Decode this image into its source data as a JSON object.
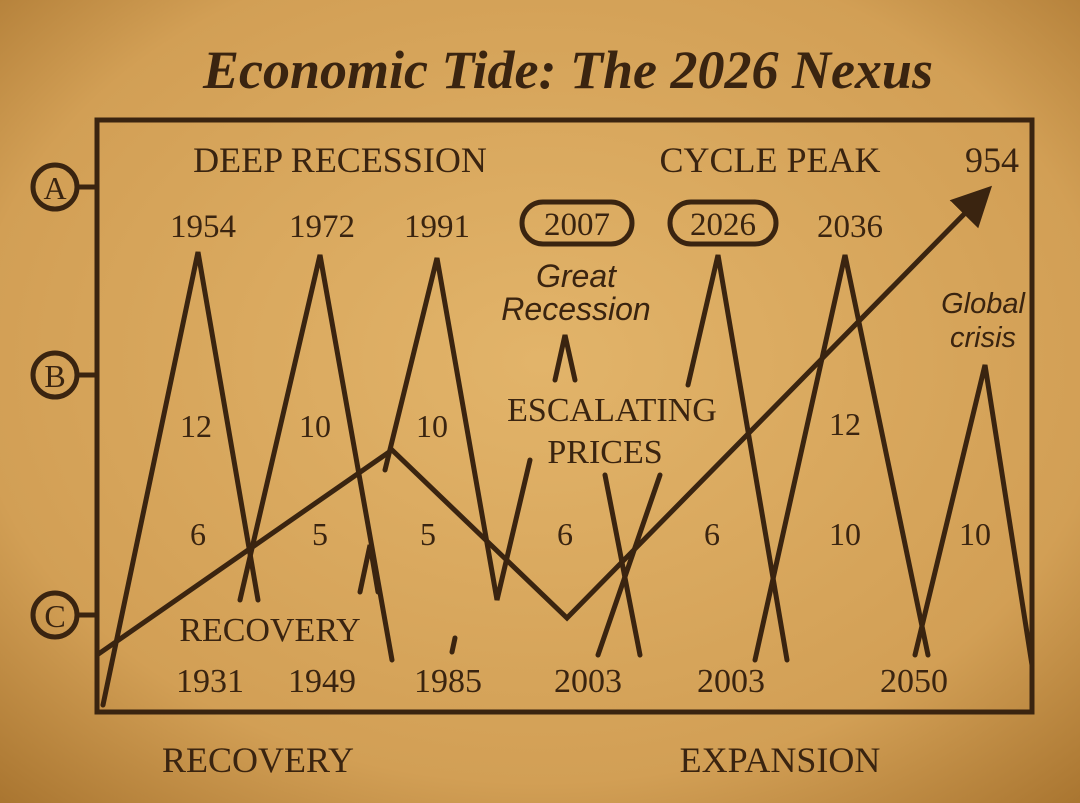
{
  "title": "Economic Tide: The 2026 Nexus",
  "markers": [
    "A",
    "B",
    "C"
  ],
  "top_labels": [
    "DEEP RECESSION",
    "CYCLE PEAK",
    "954"
  ],
  "peak_years": [
    "1954",
    "1972",
    "1991",
    "2007",
    "2026",
    "2036"
  ],
  "upper_numbers": [
    "12",
    "10",
    "10",
    "12"
  ],
  "lower_numbers": [
    "6",
    "5",
    "5",
    "6",
    "6",
    "10",
    "10"
  ],
  "trough_years": [
    "1931",
    "1949",
    "1985",
    "2003",
    "2003",
    "2050"
  ],
  "annotations": {
    "great_recession": [
      "Great",
      "Recession"
    ],
    "escalating_prices": [
      "ESCALATING",
      "PRICES"
    ],
    "global_crisis": [
      "Global",
      "crisis"
    ],
    "recovery_inner": "RECOVERY"
  },
  "bottom_labels": [
    "RECOVERY",
    "EXPANSION"
  ]
}
